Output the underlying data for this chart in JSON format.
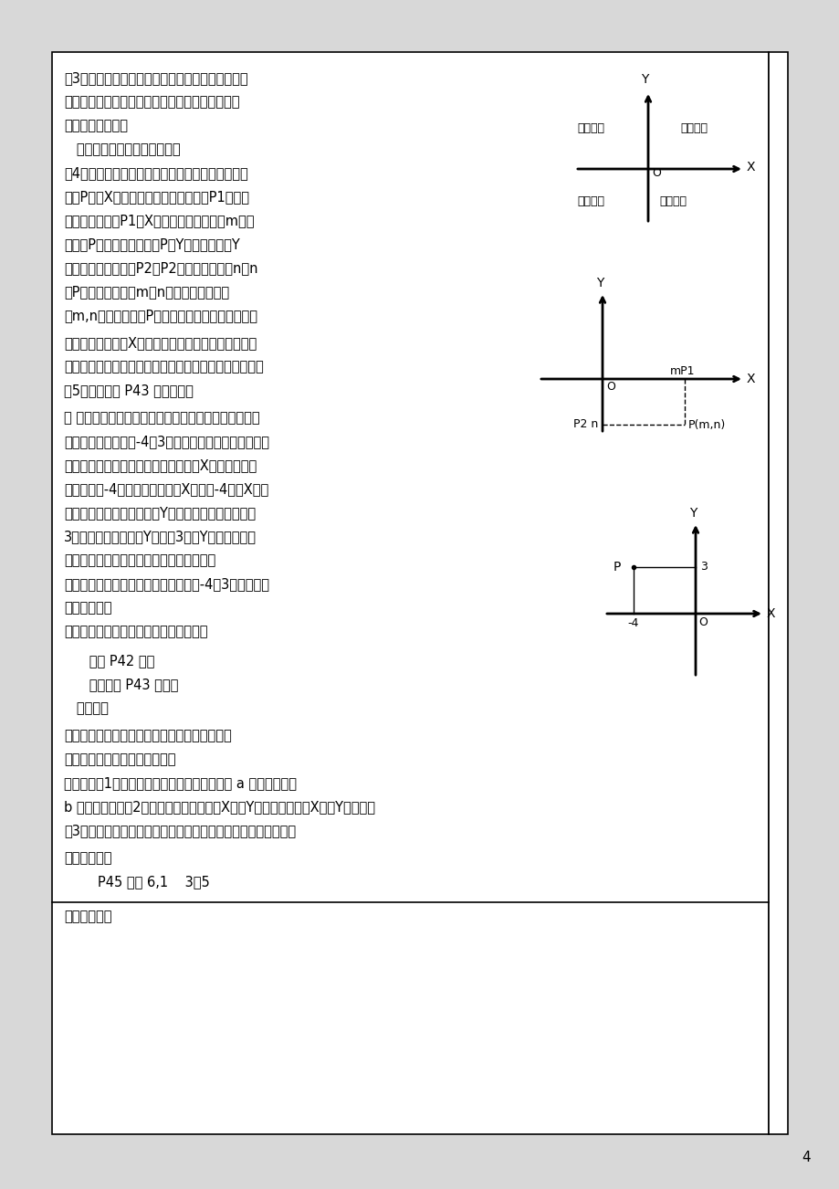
{
  "page_bg": "#e8e8e8",
  "content_bg": "#ffffff",
  "border_color": "#000000",
  "text_color": "#000000",
  "page_number": "4",
  "main_content_lines": [
    "（3）象限划分，平面上画的坐标系，把平面分成四",
    "个区域，依次叫它们为第一象限、第二象限、第三",
    "象限、第四象限。",
    "   坐标轴不属于任何一个象限。",
    "（4）建立了平面直角坐标系以后，对于平面上任意",
    "一点P先向X轴做垂线，有唯一一个垂足P1（为什",
    "么垂足唯一？）P1在X轴上对应唯一一个数m，这",
    "个数叫P点的横坐标。然后P向Y轴做垂线，在Y",
    "轴上有唯一一个垂足P2，P2对应唯一一个数n，n",
    "叫P点的纵坐标，把m、n组成一个有序数对",
    "（m,n）这就叫做点P的坐标（对照坐标系讲解并举"
  ],
  "note_lines": [
    "注意：必须先找到X轴上垂足对应的数，即横坐标。并",
    "写在括号内的前面，纵坐标写在后面，中间用逗号分开。",
    "（5）巩固练习 P43 练习第一题"
  ],
  "section3_lines": [
    "三 以上大家是已知点的位置找点的坐标，如果反过来先",
    "已知点的坐标，如（-4，3）如何找到与其对应的点呢？",
    "从上面坐标定义可知，这个待定的点向X轴作垂线，垂",
    "足一定对应-4，所以这个点在过X轴上的-4且与X轴垂",
    "直的直线上；同理这个点向Y轴作垂线，垂足肯定对应",
    "3，所以此点同时在过Y轴上的3且与Y轴垂直的直线",
    "上，两条直线的交点就是我们所要描的点。",
    "两直线相交，交点只有一个。因此与（-4，3）对应的点",
    "只有唯一一个",
    "（初步渗透点与有序数对构成一一对应）"
  ],
  "indent_lines": [
    "      讲解 P42 例题",
    "      巩固练习 P43 第二题",
    "   四、小结"
  ],
  "summary_lines": [
    "本节主要学习了平面直角坐标系及其相关概念。",
    "用到的主要思想是数形结合思想",
    "注意问题（1）平面直角坐标系的两个基本问题 a 已知点求坐标",
    "b 已知坐标描点（2）画坐标系别忘了标出X轴、Y轴的正方向以及X轴、Y轴的名称",
    "（3）写坐标时要加小括号，括号内先横后纵，中间用逗号分开。"
  ],
  "hw_section": "五、布置作业",
  "hw_line": "        P45 习题 6,1    3、5",
  "appendix": "附：板书设计",
  "diagram1": {
    "y_label": "Y",
    "x_label": "X",
    "o_label": "O",
    "q1": "第一象限",
    "q2": "第二象限",
    "q3": "第三象限",
    "q4": "第四象限"
  },
  "diagram2": {
    "y_label": "Y",
    "x_label": "X",
    "o_label": "O",
    "mp1": "mP1",
    "p2n": "P2 n",
    "pmn": "P(m,n)"
  },
  "diagram3": {
    "y_label": "Y",
    "x_label": "X",
    "o_label": "O",
    "p_label": "P",
    "neg4": "-4",
    "val3": "3"
  }
}
